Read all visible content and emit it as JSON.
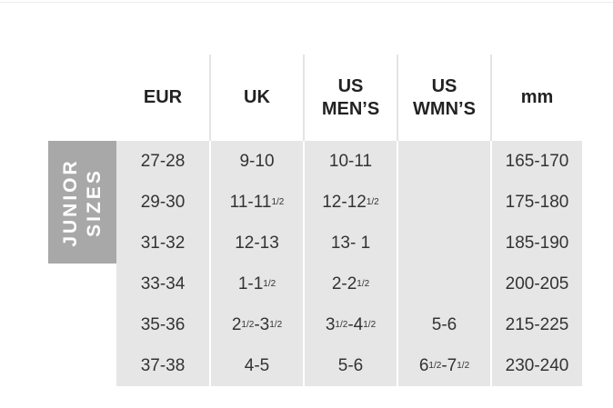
{
  "side_label": [
    "JUNIOR",
    "SIZES"
  ],
  "table": {
    "header": [
      [
        "EUR"
      ],
      [
        "UK"
      ],
      [
        "US",
        "MEN’S"
      ],
      [
        "US",
        "WMN’S"
      ],
      [
        "mm"
      ]
    ],
    "rows": [
      [
        [
          "27-28"
        ],
        [
          "9-10"
        ],
        [
          "10-11"
        ],
        null,
        [
          "165-170"
        ]
      ],
      [
        [
          "29-30"
        ],
        [
          "11-11",
          {
            "sup": "1/2"
          }
        ],
        [
          "12-12",
          {
            "sup": "1/2"
          }
        ],
        null,
        [
          "175-180"
        ]
      ],
      [
        [
          "31-32"
        ],
        [
          "12-13"
        ],
        [
          "13- 1"
        ],
        null,
        [
          "185-190"
        ]
      ],
      [
        [
          "33-34"
        ],
        [
          "1-1",
          {
            "sup": "1/2"
          }
        ],
        [
          "2-2",
          {
            "sup": "1/2"
          }
        ],
        null,
        [
          "200-205"
        ]
      ],
      [
        [
          "35-36"
        ],
        [
          "2",
          {
            "sup": "1/2"
          },
          "-3",
          {
            "sup": "1/2"
          }
        ],
        [
          "3",
          {
            "sup": "1/2"
          },
          "-4",
          {
            "sup": "1/2"
          }
        ],
        [
          "5-6"
        ],
        [
          "215-225"
        ]
      ],
      [
        [
          "37-38"
        ],
        [
          "4-5"
        ],
        [
          "5-6"
        ],
        [
          "6",
          {
            "sup": "1/2"
          },
          "-7",
          {
            "sup": "1/2"
          }
        ],
        [
          "230-240"
        ]
      ]
    ]
  }
}
